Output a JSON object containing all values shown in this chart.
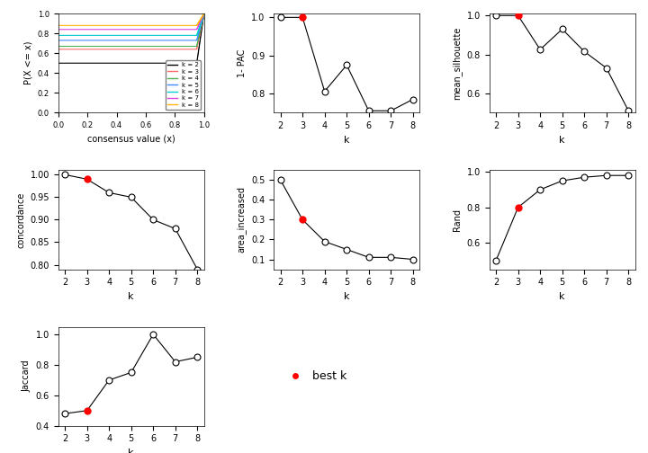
{
  "ecdf_colors": [
    "black",
    "#FF6B6B",
    "#4CAF50",
    "#4488FF",
    "#00CCCC",
    "#DD44DD",
    "#FFB300"
  ],
  "ecdf_labels": [
    "k = 2",
    "k = 3",
    "k = 4",
    "k = 5",
    "k = 6",
    "k = 7",
    "k = 8"
  ],
  "ecdf_base_levels": [
    0.5,
    0.64,
    0.67,
    0.73,
    0.78,
    0.84,
    0.88
  ],
  "k_values": [
    2,
    3,
    4,
    5,
    6,
    7,
    8
  ],
  "pac_1minus": [
    1.0,
    1.0,
    0.806,
    0.875,
    0.755,
    0.755,
    0.785
  ],
  "mean_silhouette": [
    1.0,
    1.0,
    0.825,
    0.93,
    0.815,
    0.73,
    0.51
  ],
  "concordance": [
    1.0,
    0.99,
    0.96,
    0.95,
    0.9,
    0.88,
    0.79
  ],
  "area_increased": [
    0.5,
    0.3,
    0.19,
    0.15,
    0.11,
    0.11,
    0.1
  ],
  "rand": [
    0.5,
    0.8,
    0.9,
    0.95,
    0.97,
    0.98,
    0.98
  ],
  "jaccard": [
    0.48,
    0.5,
    0.7,
    0.75,
    1.0,
    0.82,
    0.85
  ],
  "best_k": 3,
  "best_k_idx": 1,
  "red_dot_color": "#FF0000",
  "open_dot_color": "white",
  "dot_edge_color": "black",
  "line_color": "black",
  "bg_color": "white"
}
